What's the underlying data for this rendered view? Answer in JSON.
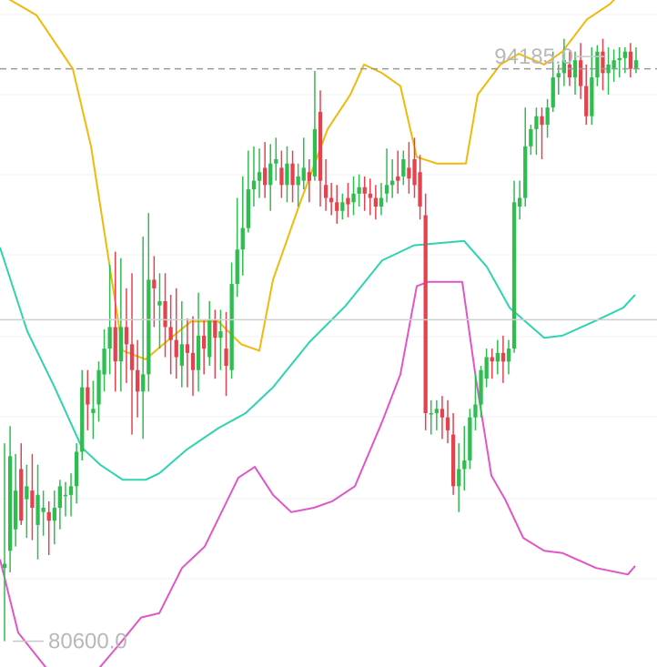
{
  "chart_data": {
    "type": "candlestick",
    "title": "",
    "labels": {
      "high_label": "94185.0",
      "low_label": "80600.0"
    },
    "y_range": [
      80000,
      95500
    ],
    "reference_line": 93900,
    "reference_hline": 88070,
    "colors": {
      "up": "#2ebd4f",
      "down": "#e5424f",
      "upper_band": "#f0b90b",
      "middle_band": "#2ed3b0",
      "lower_band": "#e055c8",
      "grid": "#f2f2f2",
      "dashed": "#9a9a9a"
    },
    "candles": [
      [
        82300,
        82400,
        80600,
        85200
      ],
      [
        82700,
        84900,
        82200,
        85600
      ],
      [
        83200,
        84100,
        82800,
        84950
      ],
      [
        84600,
        83400,
        83300,
        85200
      ],
      [
        83900,
        84200,
        83000,
        84700
      ],
      [
        84100,
        83700,
        82950,
        84950
      ],
      [
        83300,
        84000,
        82500,
        84700
      ],
      [
        83600,
        83700,
        83050,
        84100
      ],
      [
        83600,
        83400,
        82600,
        83850
      ],
      [
        83400,
        83700,
        82850,
        84100
      ],
      [
        83700,
        84200,
        83200,
        84350
      ],
      [
        84000,
        84000,
        83500,
        84300
      ],
      [
        84000,
        84200,
        83500,
        84500
      ],
      [
        84200,
        85000,
        83800,
        85200
      ],
      [
        85000,
        86500,
        84800,
        86900
      ],
      [
        86500,
        86100,
        85500,
        86900
      ],
      [
        85900,
        86000,
        85300,
        86650
      ],
      [
        86100,
        86900,
        85700,
        87100
      ],
      [
        86800,
        87400,
        86400,
        87850
      ],
      [
        87400,
        87900,
        86800,
        89350
      ],
      [
        87900,
        87100,
        86400,
        89650
      ],
      [
        87100,
        87900,
        86400,
        89500
      ],
      [
        87900,
        87500,
        86600,
        88800
      ],
      [
        87500,
        86900,
        85400,
        89150
      ],
      [
        86900,
        86400,
        85800,
        87600
      ],
      [
        86400,
        86800,
        85300,
        90000
      ],
      [
        86800,
        89000,
        86400,
        90550
      ],
      [
        89000,
        88800,
        87900,
        89550
      ],
      [
        88400,
        88500,
        87400,
        89150
      ],
      [
        88500,
        87900,
        87200,
        89150
      ],
      [
        87900,
        87600,
        86800,
        88650
      ],
      [
        87600,
        87200,
        86700,
        88800
      ],
      [
        87000,
        87500,
        86500,
        88500
      ],
      [
        87500,
        87300,
        86500,
        88100
      ],
      [
        87300,
        86900,
        86300,
        88150
      ],
      [
        86900,
        87700,
        86400,
        88700
      ],
      [
        87700,
        87400,
        86800,
        88050
      ],
      [
        87200,
        88050,
        87000,
        88500
      ],
      [
        88050,
        87650,
        86700,
        88300
      ],
      [
        87650,
        87800,
        86900,
        88300
      ],
      [
        87400,
        87000,
        86300,
        88250
      ],
      [
        86900,
        88900,
        86700,
        89400
      ],
      [
        88900,
        89700,
        88600,
        90900
      ],
      [
        89700,
        90200,
        89100,
        91400
      ],
      [
        90200,
        91100,
        90100,
        92000
      ],
      [
        91100,
        91300,
        90700,
        92100
      ],
      [
        91300,
        91500,
        90900,
        92050
      ],
      [
        91600,
        91200,
        90900,
        92200
      ],
      [
        91200,
        91700,
        90600,
        92150
      ],
      [
        91700,
        91800,
        91300,
        92300
      ],
      [
        91600,
        91200,
        90900,
        92000
      ],
      [
        91200,
        91700,
        90800,
        92100
      ],
      [
        91700,
        91200,
        90800,
        92000
      ],
      [
        91200,
        91400,
        90700,
        91700
      ],
      [
        91300,
        91600,
        91100,
        92300
      ],
      [
        91500,
        91300,
        90800,
        91800
      ],
      [
        91400,
        92500,
        91300,
        93850
      ],
      [
        92900,
        91300,
        90700,
        93400
      ],
      [
        91200,
        90900,
        90600,
        91800
      ],
      [
        90900,
        90800,
        90500,
        91250
      ],
      [
        90800,
        90600,
        90300,
        91200
      ],
      [
        90600,
        90800,
        90400,
        91000
      ],
      [
        90900,
        90750,
        90450,
        91250
      ],
      [
        90800,
        91000,
        90500,
        91400
      ],
      [
        91000,
        91150,
        90700,
        91450
      ],
      [
        91150,
        91000,
        90600,
        91400
      ],
      [
        91000,
        90900,
        90500,
        91350
      ],
      [
        90900,
        90700,
        90400,
        91200
      ],
      [
        90700,
        90900,
        90500,
        91250
      ],
      [
        91000,
        91200,
        90800,
        92050
      ],
      [
        91200,
        91300,
        90900,
        91800
      ],
      [
        91400,
        91300,
        91000,
        92000
      ],
      [
        91400,
        91800,
        91200,
        92000
      ],
      [
        91600,
        91350,
        91000,
        92200
      ],
      [
        91800,
        91200,
        90900,
        92300
      ],
      [
        91500,
        90700,
        90400,
        91900
      ],
      [
        90500,
        85900,
        85500,
        91000
      ],
      [
        85900,
        85900,
        85400,
        86200
      ],
      [
        85900,
        86000,
        85500,
        86200
      ],
      [
        86000,
        85800,
        85300,
        86300
      ],
      [
        85800,
        85500,
        85200,
        86200
      ],
      [
        85400,
        84200,
        84000,
        85900
      ],
      [
        84200,
        84600,
        83600,
        85200
      ],
      [
        84600,
        84800,
        84100,
        85600
      ],
      [
        84800,
        85800,
        84600,
        86000
      ],
      [
        85800,
        86100,
        85500,
        86800
      ],
      [
        86100,
        86900,
        85800,
        87000
      ],
      [
        86700,
        87200,
        86500,
        87400
      ],
      [
        87200,
        87100,
        86700,
        87400
      ],
      [
        87100,
        87300,
        86800,
        87600
      ],
      [
        87300,
        87100,
        86600,
        87700
      ],
      [
        87100,
        87400,
        86800,
        87600
      ],
      [
        87400,
        90800,
        87300,
        91300
      ],
      [
        90700,
        90900,
        90400,
        91300
      ],
      [
        90900,
        92100,
        90700,
        93000
      ],
      [
        92100,
        92500,
        91900,
        92600
      ],
      [
        92500,
        92800,
        91900,
        93000
      ],
      [
        92800,
        92600,
        91800,
        93000
      ],
      [
        92600,
        93000,
        92300,
        93200
      ],
      [
        93000,
        93700,
        92900,
        94300
      ],
      [
        93700,
        93800,
        93300,
        94000
      ],
      [
        93800,
        94100,
        93500,
        94600
      ],
      [
        94000,
        93700,
        93500,
        94300
      ],
      [
        93700,
        94100,
        93300,
        94300
      ],
      [
        94100,
        93500,
        93200,
        94500
      ],
      [
        93500,
        92800,
        92600,
        94000
      ],
      [
        92800,
        93700,
        92600,
        94400
      ],
      [
        93700,
        94300,
        93500,
        94450
      ],
      [
        94300,
        93800,
        93400,
        94600
      ],
      [
        93800,
        94000,
        93300,
        94400
      ],
      [
        93900,
        94100,
        93600,
        94350
      ],
      [
        94100,
        94150,
        93700,
        94400
      ],
      [
        94150,
        94300,
        93800,
        94400
      ],
      [
        94300,
        93900,
        93700,
        94500
      ],
      [
        93900,
        94100,
        93800,
        94400
      ]
    ],
    "upper_band": [
      [
        -5,
        95700
      ],
      [
        40,
        95150
      ],
      [
        80,
        93900
      ],
      [
        100,
        92100
      ],
      [
        135,
        87350
      ],
      [
        160,
        87150
      ],
      [
        185,
        87600
      ],
      [
        210,
        88030
      ],
      [
        240,
        88030
      ],
      [
        265,
        87500
      ],
      [
        285,
        87350
      ],
      [
        300,
        89000
      ],
      [
        330,
        90800
      ],
      [
        360,
        92500
      ],
      [
        385,
        93300
      ],
      [
        400,
        94000
      ],
      [
        420,
        93800
      ],
      [
        440,
        93500
      ],
      [
        458,
        91850
      ],
      [
        480,
        91700
      ],
      [
        512,
        91700
      ],
      [
        525,
        93300
      ],
      [
        550,
        94000
      ],
      [
        570,
        94250
      ],
      [
        598,
        94000
      ],
      [
        618,
        94300
      ],
      [
        645,
        95050
      ],
      [
        670,
        95400
      ],
      [
        698,
        96000
      ]
    ],
    "middle_band": [
      [
        0,
        89750
      ],
      [
        30,
        87800
      ],
      [
        60,
        86500
      ],
      [
        90,
        85100
      ],
      [
        110,
        84700
      ],
      [
        135,
        84350
      ],
      [
        160,
        84350
      ],
      [
        175,
        84500
      ],
      [
        205,
        85050
      ],
      [
        240,
        85550
      ],
      [
        270,
        85900
      ],
      [
        300,
        86500
      ],
      [
        340,
        87550
      ],
      [
        380,
        88400
      ],
      [
        420,
        89450
      ],
      [
        455,
        89800
      ],
      [
        510,
        89900
      ],
      [
        535,
        89300
      ],
      [
        560,
        88350
      ],
      [
        598,
        87650
      ],
      [
        618,
        87700
      ],
      [
        655,
        88050
      ],
      [
        685,
        88350
      ],
      [
        698,
        88650
      ]
    ],
    "lower_band": [
      [
        0,
        82500
      ],
      [
        20,
        80800
      ],
      [
        50,
        80000
      ],
      [
        90,
        79500
      ],
      [
        130,
        80500
      ],
      [
        155,
        81150
      ],
      [
        175,
        81250
      ],
      [
        200,
        82300
      ],
      [
        225,
        82800
      ],
      [
        262,
        84400
      ],
      [
        280,
        84650
      ],
      [
        300,
        84000
      ],
      [
        320,
        83600
      ],
      [
        345,
        83700
      ],
      [
        365,
        83850
      ],
      [
        390,
        84200
      ],
      [
        420,
        85700
      ],
      [
        440,
        86800
      ],
      [
        458,
        88850
      ],
      [
        470,
        88950
      ],
      [
        508,
        88950
      ],
      [
        523,
        86700
      ],
      [
        540,
        84450
      ],
      [
        555,
        83900
      ],
      [
        575,
        83000
      ],
      [
        598,
        82700
      ],
      [
        618,
        82650
      ],
      [
        655,
        82300
      ],
      [
        690,
        82150
      ],
      [
        698,
        82350
      ]
    ]
  }
}
